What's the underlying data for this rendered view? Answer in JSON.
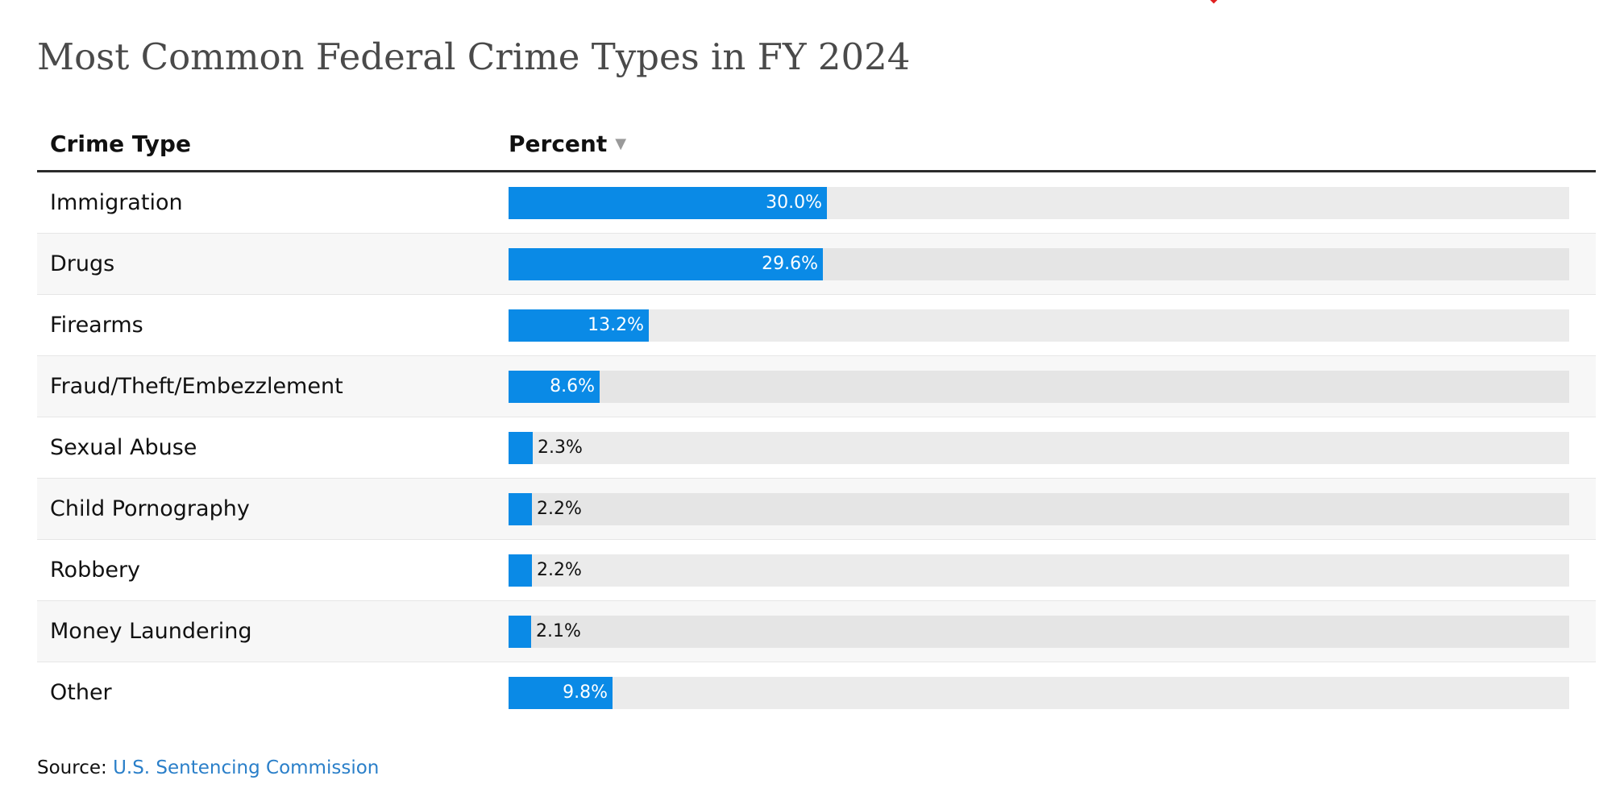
{
  "title": "Most Common Federal Crime Types in FY 2024",
  "table": {
    "col_type_header": "Crime Type",
    "col_percent_header": "Percent",
    "sort_icon": "triangle-down-icon"
  },
  "source": {
    "label": "Source:",
    "link_text": "U.S. Sentencing Commission"
  },
  "colors": {
    "bar": "#0a8ae6",
    "track": "#ebebeb",
    "link": "#2a7fc9",
    "marker": "#e02020"
  },
  "chart_data": {
    "type": "bar",
    "orientation": "horizontal",
    "title": "Most Common Federal Crime Types in FY 2024",
    "xlabel": "Percent",
    "ylabel": "Crime Type",
    "xlim": [
      0,
      100
    ],
    "categories": [
      "Immigration",
      "Drugs",
      "Firearms",
      "Fraud/Theft/Embezzlement",
      "Sexual Abuse",
      "Child Pornography",
      "Robbery",
      "Money Laundering",
      "Other"
    ],
    "values": [
      30.0,
      29.6,
      13.2,
      8.6,
      2.3,
      2.2,
      2.2,
      2.1,
      9.8
    ],
    "labels": [
      "30.0%",
      "29.6%",
      "13.2%",
      "8.6%",
      "2.3%",
      "2.2%",
      "2.2%",
      "2.1%",
      "9.8%"
    ],
    "sorted_by": "Percent",
    "sort_direction": "descending"
  }
}
